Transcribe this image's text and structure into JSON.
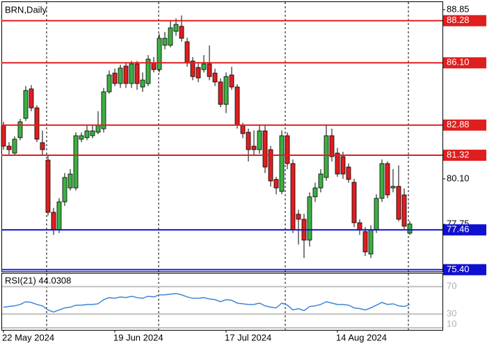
{
  "chart_data": {
    "type": "candlestick",
    "title": "BRN,Daily",
    "categories": [
      "22 May 2024",
      null,
      null,
      null,
      null,
      null,
      null,
      null,
      null,
      null,
      null,
      null,
      null,
      null,
      null,
      null,
      null,
      null,
      null,
      null,
      "19 Jun 2024",
      null,
      null,
      null,
      null,
      null,
      null,
      null,
      null,
      null,
      null,
      null,
      null,
      null,
      null,
      null,
      null,
      null,
      null,
      null,
      "17 Jul 2024",
      null,
      null,
      null,
      null,
      null,
      null,
      null,
      null,
      null,
      null,
      null,
      null,
      null,
      null,
      null,
      null,
      null,
      null,
      null,
      "14 Aug 2024",
      null,
      null,
      null,
      null,
      null,
      null,
      null,
      null,
      null,
      null,
      null,
      null,
      null
    ],
    "open": [
      82.87,
      81.79,
      81.43,
      82.23,
      83.23,
      84.75,
      83.77,
      81.97,
      81.07,
      78.37,
      77.47,
      78.91,
      79.63,
      79.63,
      82.15,
      82.23,
      82.33,
      82.51,
      82.69,
      84.6,
      85.57,
      85.03,
      85.93,
      85.03,
      86.04,
      84.85,
      85.03,
      86.11,
      85.75,
      87.01,
      87.01,
      87.73,
      87.99,
      87.19,
      86.19,
      85.86,
      85.75,
      86.04,
      85.57,
      85.11,
      83.95,
      85.47,
      84.85,
      82.87,
      82.51,
      81.79,
      81.61,
      82.58,
      81.61,
      80.07,
      79.45,
      82.33,
      80.89,
      78.27,
      78.01,
      76.93,
      79.17,
      79.63,
      80.17,
      82.33,
      81.43,
      81.25,
      80.71,
      79.92,
      77.83,
      77.37,
      76.21,
      77.47,
      79.09,
      80.89,
      79.63,
      79.71,
      79.27,
      77.29
    ],
    "high": [
      83.05,
      82.0,
      82.3,
      83.2,
      84.9,
      84.95,
      83.9,
      82.6,
      81.3,
      78.6,
      79.1,
      80.4,
      80.6,
      82.5,
      82.5,
      82.9,
      82.9,
      83.6,
      84.8,
      85.7,
      85.8,
      86.0,
      86.1,
      86.2,
      86.2,
      85.6,
      86.5,
      86.4,
      87.6,
      87.7,
      88.3,
      88.4,
      88.55,
      87.4,
      86.4,
      86.1,
      86.5,
      87.0,
      85.8,
      85.3,
      85.6,
      85.9,
      85.0,
      83.0,
      82.7,
      82.6,
      82.9,
      82.9,
      81.8,
      80.2,
      82.6,
      82.5,
      81.1,
      78.5,
      78.3,
      79.4,
      79.9,
      80.6,
      82.9,
      82.7,
      81.7,
      81.5,
      80.9,
      80.1,
      78.0,
      77.6,
      77.7,
      79.3,
      81.1,
      81.0,
      80.6,
      80.8,
      79.6,
      77.9
    ],
    "low": [
      81.61,
      81.35,
      81.3,
      82.1,
      83.1,
      83.6,
      82.0,
      81.3,
      78.2,
      77.2,
      77.3,
      78.7,
      79.5,
      79.5,
      82.0,
      82.1,
      82.2,
      82.4,
      82.5,
      84.5,
      84.9,
      84.8,
      84.8,
      84.8,
      84.7,
      84.6,
      84.9,
      85.6,
      85.6,
      86.8,
      86.9,
      87.5,
      87.2,
      85.9,
      85.2,
      85.1,
      85.6,
      85.2,
      84.9,
      83.8,
      83.5,
      84.7,
      82.7,
      82.2,
      81.0,
      81.3,
      81.4,
      80.4,
      79.7,
      79.3,
      79.3,
      80.6,
      77.3,
      76.7,
      76.0,
      76.6,
      78.9,
      79.4,
      80.0,
      81.0,
      80.2,
      80.1,
      79.9,
      77.6,
      77.2,
      76.1,
      76.0,
      77.3,
      78.9,
      79.1,
      79.4,
      77.9,
      77.5,
      77.2
    ],
    "close": [
      81.79,
      81.61,
      82.15,
      83.05,
      84.67,
      83.77,
      82.15,
      81.61,
      78.37,
      77.47,
      78.91,
      80.17,
      80.35,
      82.33,
      82.33,
      82.58,
      82.58,
      82.87,
      84.6,
      85.47,
      85.03,
      85.83,
      85.03,
      86.04,
      85.03,
      85.21,
      86.29,
      85.75,
      87.37,
      87.37,
      87.91,
      88.09,
      87.37,
      86.11,
      85.39,
      85.32,
      86.04,
      85.39,
      85.11,
      83.95,
      85.39,
      84.85,
      82.87,
      82.44,
      81.61,
      81.61,
      82.58,
      80.71,
      79.99,
      79.63,
      82.33,
      80.89,
      77.47,
      78.01,
      76.93,
      79.17,
      79.63,
      80.35,
      82.33,
      81.25,
      80.35,
      80.35,
      80.07,
      77.83,
      77.47,
      76.32,
      77.47,
      79.09,
      80.89,
      79.27,
      79.71,
      78.01,
      77.65,
      77.76
    ],
    "up_color": "#3cb043",
    "down_color": "#e01e1e",
    "ylim": [
      75.31,
      89.17
    ],
    "yticks": [
      88.85,
      {
        "value": 80.1,
        "label": "80.10"
      },
      77.75
    ],
    "levels": [
      {
        "value": 88.28,
        "color": "#e01e1e"
      },
      {
        "value": 86.1,
        "label": "86.10",
        "color": "#e01e1e"
      },
      {
        "value": 82.88,
        "color": "#e01e1e"
      },
      {
        "value": 81.32,
        "color": "#e01e1e"
      },
      {
        "value": 77.46,
        "color": "#1010d0"
      },
      {
        "value": 75.4,
        "label": "75.40",
        "color": "#1010d0"
      }
    ],
    "rsi": {
      "title": "RSI(21) 44.0308",
      "color": "#3d85d6",
      "ylim": [
        7,
        89
      ],
      "yticks": [
        70,
        30,
        10
      ],
      "values": [
        40,
        41,
        42,
        44,
        48,
        47,
        44,
        42,
        36,
        33,
        36,
        39,
        40,
        43,
        43,
        44,
        44,
        45,
        51,
        54,
        53,
        55,
        54,
        56,
        54,
        53,
        56,
        55,
        58,
        58,
        59,
        60,
        58,
        55,
        53,
        53,
        54,
        52,
        51,
        48,
        51,
        50,
        46,
        45,
        44,
        44,
        46,
        42,
        40,
        39,
        46,
        43,
        36,
        38,
        35,
        41,
        42,
        44,
        48,
        46,
        44,
        44,
        43,
        39,
        38,
        36,
        39,
        43,
        47,
        44,
        45,
        42,
        41,
        44.03
      ]
    }
  }
}
